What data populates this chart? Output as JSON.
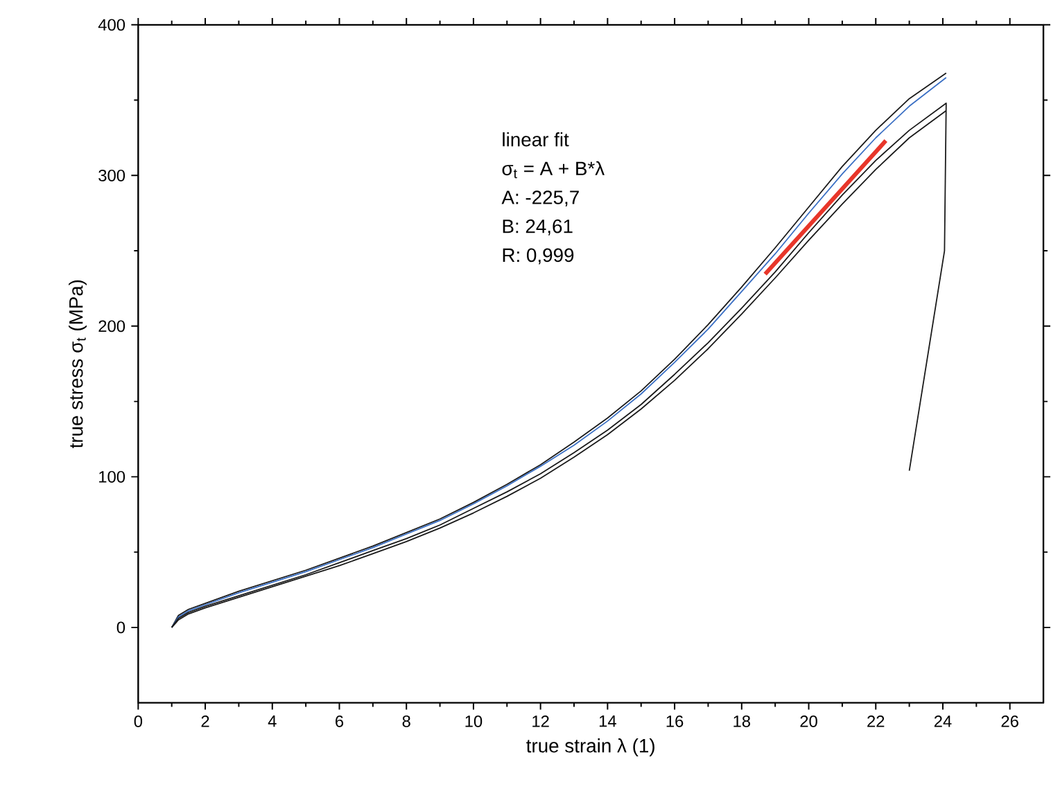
{
  "chart_data": {
    "type": "line",
    "xlabel": "true strain λ (1)",
    "ylabel": "true stress σ$_{t}$ (MPa)",
    "xlim": [
      0,
      27
    ],
    "ylim": [
      -50,
      400
    ],
    "xticks": [
      0,
      2,
      4,
      6,
      8,
      10,
      12,
      14,
      16,
      18,
      20,
      22,
      24,
      26
    ],
    "yticks": [
      0,
      100,
      200,
      300,
      400
    ],
    "annotations": [
      "linear fit",
      "σ$_{t}$ = A + B*λ",
      "A: -225,7",
      "B: 24,61",
      "R: 0,999"
    ],
    "series": [
      {
        "color": "#1a1a1a",
        "x": [
          1,
          1.2,
          1.5,
          2,
          3,
          4,
          5,
          6,
          7,
          8,
          9,
          10,
          11,
          12,
          13,
          14,
          15,
          16,
          17,
          18,
          19,
          20,
          21,
          22,
          23,
          24.1
        ],
        "values": [
          0,
          8,
          12,
          16,
          24,
          31,
          38,
          46,
          54,
          63,
          72,
          83,
          95,
          108,
          123,
          139,
          157,
          178,
          201,
          226,
          252,
          279,
          306,
          330,
          351,
          368
        ]
      },
      {
        "color": "#3a6fc4",
        "x": [
          1,
          1.2,
          1.5,
          2,
          3,
          4,
          5,
          6,
          7,
          8,
          9,
          10,
          11,
          12,
          13,
          14,
          15,
          16,
          17,
          18,
          19,
          20,
          21,
          22,
          23,
          24.1
        ],
        "values": [
          0,
          7,
          11,
          15,
          23,
          30,
          37,
          45,
          53,
          62,
          71,
          82,
          94,
          107,
          121,
          137,
          155,
          176,
          198,
          223,
          248,
          275,
          301,
          325,
          346,
          365
        ]
      },
      {
        "color": "#1a1a1a",
        "x": [
          1,
          1.2,
          1.5,
          2,
          3,
          4,
          5,
          6,
          7,
          8,
          9,
          10,
          11,
          12,
          13,
          14,
          15,
          16,
          17,
          18,
          19,
          20,
          21,
          22,
          23,
          24.1,
          24.05,
          23.0
        ],
        "values": [
          0,
          6,
          10,
          14,
          21,
          28,
          35,
          43,
          51,
          59,
          68,
          79,
          90,
          102,
          116,
          131,
          148,
          168,
          189,
          212,
          236,
          262,
          287,
          310,
          330,
          348,
          250,
          104
        ]
      },
      {
        "color": "#1a1a1a",
        "x": [
          1,
          1.2,
          1.5,
          2,
          3,
          4,
          5,
          6,
          7,
          8,
          9,
          10,
          11,
          12,
          13,
          14,
          15,
          16,
          17,
          18,
          19,
          20,
          21,
          22,
          23,
          24.1
        ],
        "values": [
          0,
          5,
          9,
          13,
          20,
          27,
          34,
          41,
          49,
          57,
          66,
          76,
          87,
          99,
          113,
          128,
          145,
          164,
          185,
          208,
          232,
          257,
          281,
          304,
          325,
          343
        ]
      },
      {
        "type": "line",
        "color": "#e8362a",
        "x": [
          18.7,
          22.3
        ],
        "values": [
          234.5,
          323.1
        ]
      }
    ]
  }
}
